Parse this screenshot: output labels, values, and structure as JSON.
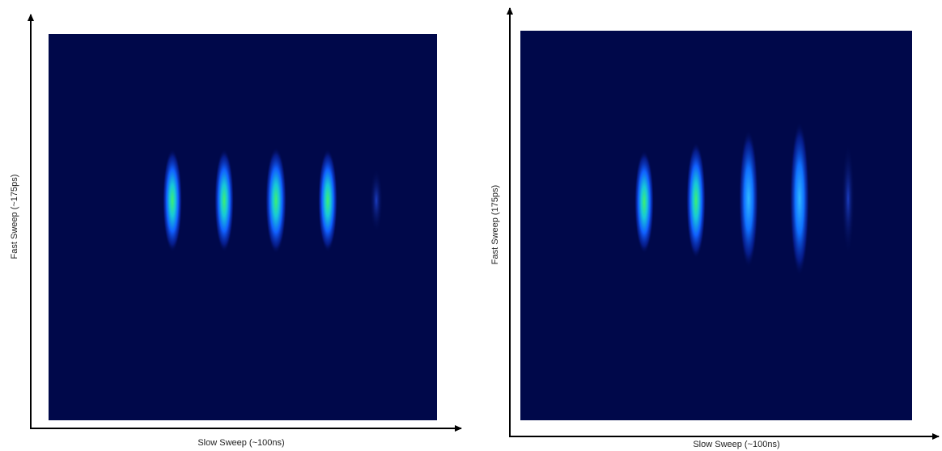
{
  "panels": [
    {
      "x_label": "Slow Sweep (~100ns)",
      "y_label": "Fast Sweep (~175ps)"
    },
    {
      "x_label": "Slow Sweep (~100ns)",
      "y_label": "Fast Sweep (175ps)"
    }
  ]
}
